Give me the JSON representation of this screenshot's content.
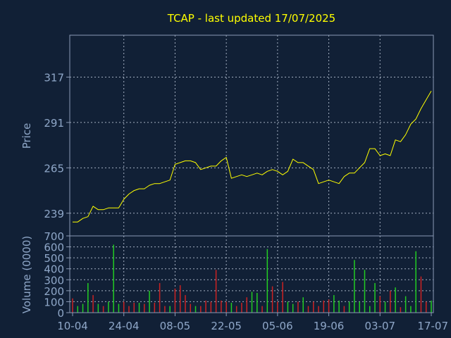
{
  "colors": {
    "background": "#112036",
    "frame": "#8a9ab5",
    "grid": "#c7d2e3",
    "title": "#ffff00",
    "axis_text": "#8fa7c8",
    "price_line": "#ffff00",
    "volume_up": "#22cc22",
    "volume_down": "#cc2222"
  },
  "chart_data": [
    {
      "type": "line",
      "title": "TCAP - last updated 17/07/2025",
      "ylabel": "Price",
      "ylim": [
        226,
        341
      ],
      "yticks": [
        239,
        265,
        291,
        317
      ],
      "grid": true,
      "x": [
        "10-04",
        "11-04",
        "14-04",
        "15-04",
        "16-04",
        "17-04",
        "18-04",
        "21-04",
        "22-04",
        "23-04",
        "24-04",
        "25-04",
        "28-04",
        "29-04",
        "30-04",
        "01-05",
        "02-05",
        "05-05",
        "06-05",
        "07-05",
        "08-05",
        "09-05",
        "12-05",
        "13-05",
        "14-05",
        "15-05",
        "16-05",
        "19-05",
        "20-05",
        "21-05",
        "22-05",
        "23-05",
        "26-05",
        "27-05",
        "28-05",
        "29-05",
        "30-05",
        "02-06",
        "03-06",
        "04-06",
        "05-06",
        "06-06",
        "09-06",
        "10-06",
        "11-06",
        "12-06",
        "13-06",
        "16-06",
        "17-06",
        "18-06",
        "19-06",
        "20-06",
        "23-06",
        "24-06",
        "25-06",
        "26-06",
        "27-06",
        "30-06",
        "01-07",
        "02-07",
        "03-07",
        "04-07",
        "07-07",
        "08-07",
        "09-07",
        "10-07",
        "11-07",
        "14-07",
        "15-07",
        "16-07",
        "17-07"
      ],
      "values": [
        234,
        234,
        236,
        237,
        243,
        241,
        241,
        242,
        242,
        242,
        247,
        250,
        252,
        253,
        253,
        255,
        256,
        256,
        257,
        258,
        267,
        268,
        269,
        269,
        268,
        264,
        265,
        266,
        266,
        269,
        271,
        259,
        260,
        261,
        260,
        261,
        262,
        261,
        263,
        264,
        263,
        261,
        263,
        270,
        268,
        268,
        266,
        264,
        256,
        257,
        258,
        257,
        256,
        260,
        262,
        262,
        265,
        268,
        276,
        276,
        272,
        273,
        272,
        281,
        280,
        284,
        290,
        293,
        299,
        304,
        309
      ],
      "x_tick_labels": [
        "10-04",
        "24-04",
        "08-05",
        "22-05",
        "05-06",
        "19-06",
        "03-07",
        "17-07"
      ]
    },
    {
      "type": "bar",
      "ylabel": "Volume (0000)",
      "ylim": [
        0,
        700
      ],
      "yticks": [
        0,
        100,
        200,
        300,
        400,
        500,
        600,
        700
      ],
      "grid": true,
      "x": [
        "10-04",
        "11-04",
        "14-04",
        "15-04",
        "16-04",
        "17-04",
        "18-04",
        "21-04",
        "22-04",
        "23-04",
        "24-04",
        "25-04",
        "28-04",
        "29-04",
        "30-04",
        "01-05",
        "02-05",
        "05-05",
        "06-05",
        "07-05",
        "08-05",
        "09-05",
        "12-05",
        "13-05",
        "14-05",
        "15-05",
        "16-05",
        "19-05",
        "20-05",
        "21-05",
        "22-05",
        "23-05",
        "26-05",
        "27-05",
        "28-05",
        "29-05",
        "30-05",
        "02-06",
        "03-06",
        "04-06",
        "05-06",
        "06-06",
        "09-06",
        "10-06",
        "11-06",
        "12-06",
        "13-06",
        "16-06",
        "17-06",
        "18-06",
        "19-06",
        "20-06",
        "23-06",
        "24-06",
        "25-06",
        "26-06",
        "27-06",
        "30-06",
        "01-07",
        "02-07",
        "03-07",
        "04-07",
        "07-07",
        "08-07",
        "09-07",
        "10-07",
        "11-07",
        "14-07",
        "15-07",
        "16-07",
        "17-07"
      ],
      "values": [
        130,
        60,
        80,
        270,
        160,
        80,
        60,
        100,
        620,
        80,
        100,
        60,
        90,
        90,
        80,
        200,
        90,
        270,
        60,
        60,
        220,
        250,
        160,
        80,
        60,
        60,
        110,
        100,
        390,
        110,
        100,
        90,
        60,
        90,
        140,
        190,
        180,
        60,
        580,
        240,
        100,
        280,
        100,
        80,
        100,
        140,
        60,
        100,
        60,
        110,
        120,
        160,
        110,
        60,
        100,
        480,
        100,
        390,
        60,
        270,
        150,
        100,
        200,
        230,
        50,
        150,
        60,
        560,
        330,
        100,
        110
      ],
      "directions": [
        "down",
        "up",
        "up",
        "up",
        "down",
        "up",
        "down",
        "up",
        "up",
        "up",
        "down",
        "down",
        "down",
        "up",
        "down",
        "up",
        "down",
        "down",
        "down",
        "up",
        "down",
        "down",
        "down",
        "down",
        "up",
        "down",
        "down",
        "down",
        "down",
        "down",
        "down",
        "up",
        "down",
        "down",
        "down",
        "up",
        "up",
        "down",
        "up",
        "down",
        "down",
        "down",
        "up",
        "up",
        "down",
        "up",
        "down",
        "down",
        "down",
        "down",
        "down",
        "up",
        "up",
        "down",
        "up",
        "up",
        "up",
        "up",
        "up",
        "up",
        "down",
        "up",
        "down",
        "up",
        "down",
        "up",
        "up",
        "up",
        "down",
        "down",
        "up"
      ]
    }
  ]
}
